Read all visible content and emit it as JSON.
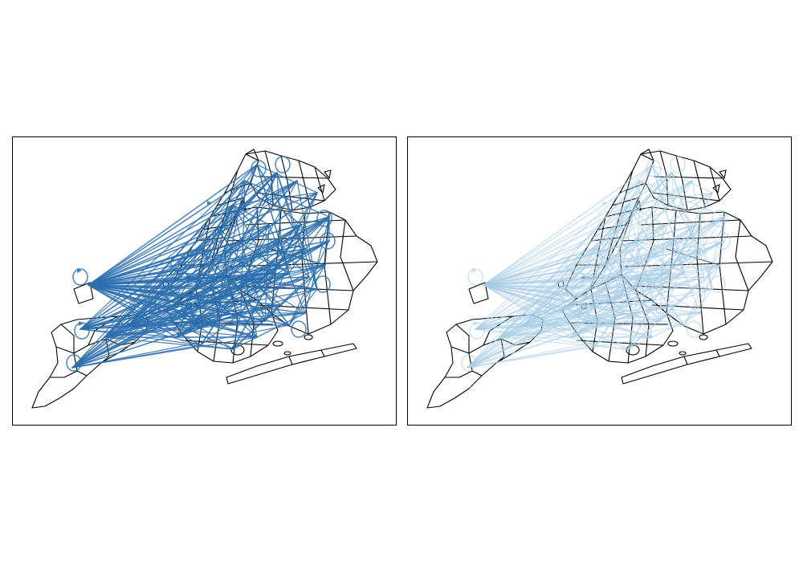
{
  "figure": {
    "panels": [
      {
        "id": "left",
        "flow_color": "#2b6fae",
        "flow_opacity": 0.85
      },
      {
        "id": "right",
        "flow_color": "#a8cce6",
        "flow_opacity": 0.55
      }
    ],
    "style": {
      "background": "#ffffff",
      "border": "#000000",
      "boundary_color": "#000000",
      "axes_ticks": "none",
      "grid": false
    }
  }
}
